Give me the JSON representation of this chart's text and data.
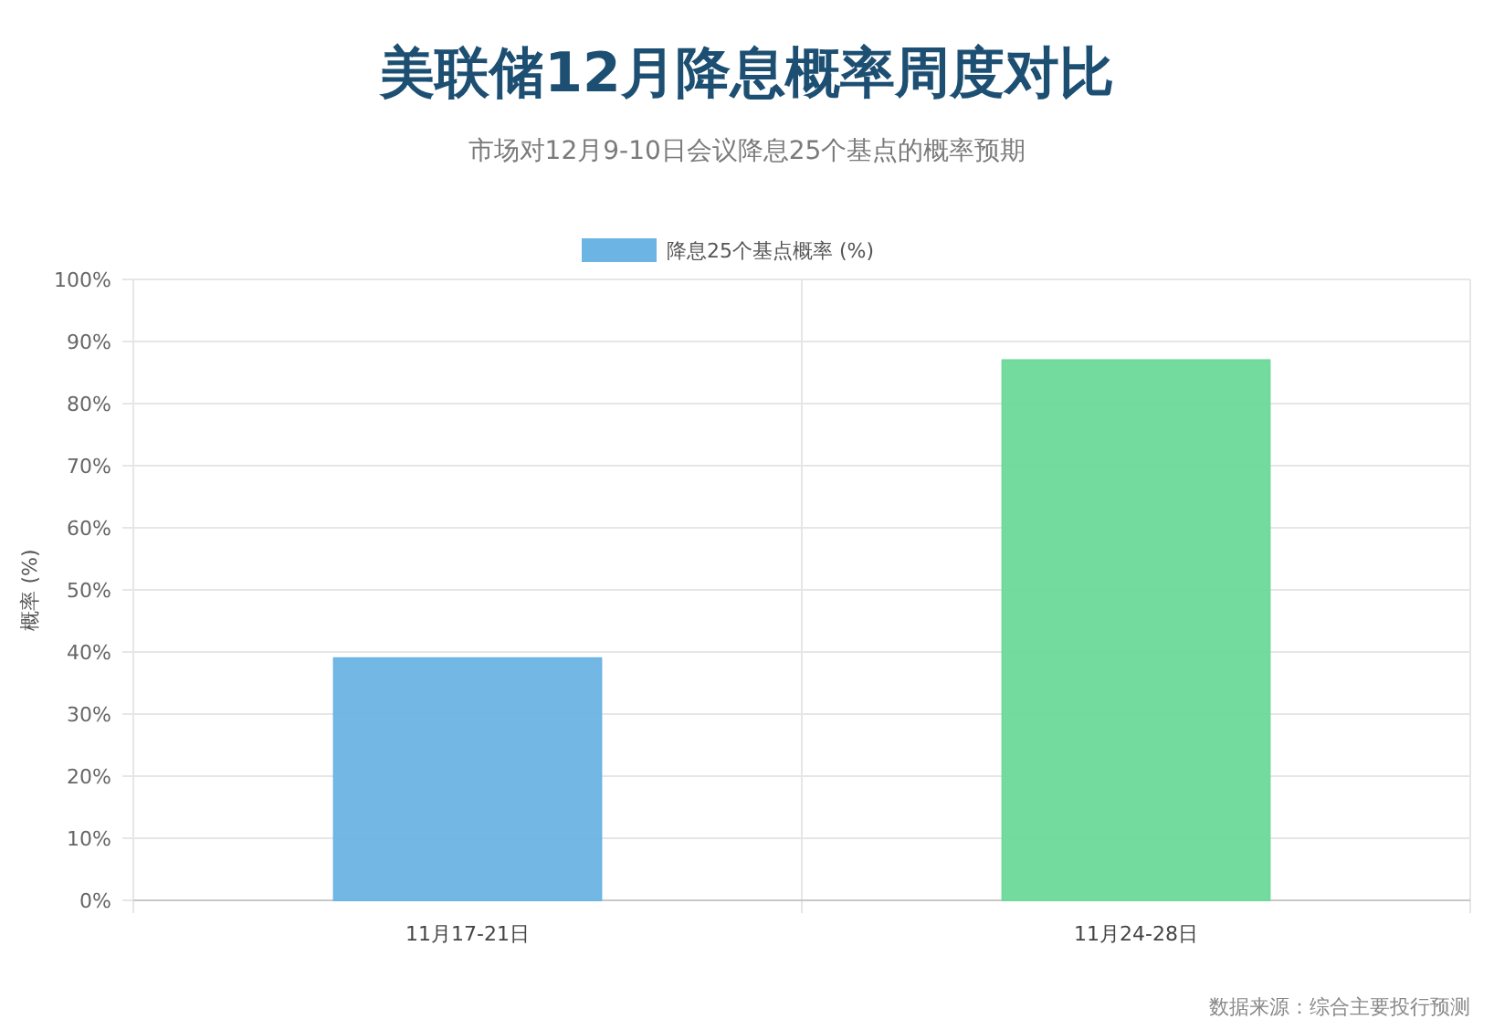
{
  "chart_data": {
    "type": "bar",
    "title": "美联储12月降息概率周度对比",
    "subtitle": "市场对12月9-10日会议降息25个基点的概率预期",
    "ylabel": "概率 (%)",
    "categories": [
      "11月17-21日",
      "11月24-28日"
    ],
    "series": [
      {
        "name": "降息25个基点概率 (%)",
        "color": "#6cb4e4",
        "colors": [
          "#6cb4e4",
          "#6dd99a"
        ],
        "values": [
          39,
          87
        ]
      }
    ],
    "ylim": [
      0,
      100
    ],
    "yticks": [
      {
        "value": 0,
        "label": "0%"
      },
      {
        "value": 10,
        "label": "10%"
      },
      {
        "value": 20,
        "label": "20%"
      },
      {
        "value": 30,
        "label": "30%"
      },
      {
        "value": 40,
        "label": "40%"
      },
      {
        "value": 50,
        "label": "50%"
      },
      {
        "value": 60,
        "label": "60%"
      },
      {
        "value": 70,
        "label": "70%"
      },
      {
        "value": 80,
        "label": "80%"
      },
      {
        "value": 90,
        "label": "90%"
      },
      {
        "value": 100,
        "label": "100%"
      }
    ],
    "grid": true,
    "legend": "top",
    "annotations": [
      "数据来源：综合主要投行预测"
    ]
  }
}
